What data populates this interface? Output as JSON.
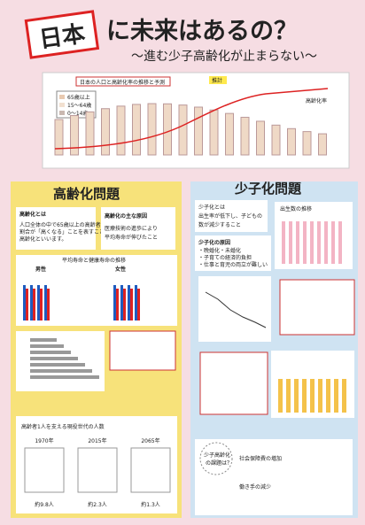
{
  "header": {
    "title_box": "日本",
    "title_rest": "に未来はあるの？",
    "subtitle": "～進む少子高齢化が止まらない～"
  },
  "top_chart": {
    "title": "日本の人口と高齢化率の推移と予測",
    "legend": [
      "65歳以上",
      "15～64歳",
      "0～14歳"
    ],
    "annotation": "推計",
    "note": "高齢化率"
  },
  "aging": {
    "heading": "高齢化問題",
    "definition_title": "高齢化とは",
    "definition": [
      "人口全体の中で65歳以上の高齢者の",
      "割合が「高くなる」ことを表すことを",
      "高齢化といいます。"
    ],
    "cause_title": "高齢化の主な原因",
    "cause": [
      "医療技術の進歩により",
      "平均寿命が伸びたこと"
    ],
    "chart_title": "平均寿命と健康寿命の推移",
    "male": "男性",
    "female": "女性",
    "support_title": "高齢者1人を支える現役世代の人数",
    "years": [
      "1970年",
      "2015年",
      "2065年"
    ],
    "support_labels": [
      "約9.8人",
      "約2.3人",
      "約1.3人"
    ]
  },
  "birth": {
    "heading": "少子化問題",
    "definition": [
      "少子化とは",
      "出生率が低下し、子どもの",
      "数が減少すること"
    ],
    "causes_title": "少子化の原因",
    "causes": [
      "・晩婚化・未婚化",
      "・子育ての経済的負担",
      "・仕事と育児の両立が難しい"
    ],
    "chart_title": "出生数の推移",
    "question": [
      "少子高齢化",
      "の課題は？"
    ],
    "answer": [
      "社会保障費の増加",
      "働き手の減少"
    ]
  }
}
